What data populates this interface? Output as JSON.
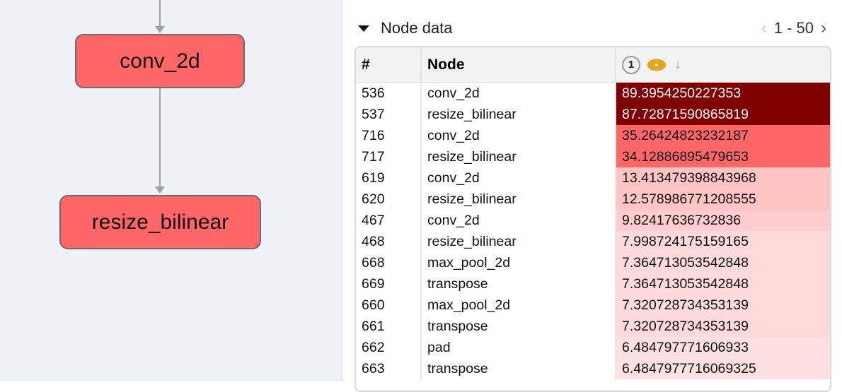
{
  "graph": {
    "nodes": [
      {
        "label": "conv_2d",
        "color": "#ff6666"
      },
      {
        "label": "resize_bilinear",
        "color": "#ff6666"
      }
    ]
  },
  "panel": {
    "section_title": "Node data",
    "pagination": "1 - 50",
    "table": {
      "columns": [
        "#",
        "Node"
      ],
      "metric_badge": "1",
      "rows": [
        {
          "id": "536",
          "node": "conv_2d",
          "value": "89.3954250227353",
          "bg": "#800000",
          "fg": "#ffffff"
        },
        {
          "id": "537",
          "node": "resize_bilinear",
          "value": "87.72871590865819",
          "bg": "#800000",
          "fg": "#ffffff"
        },
        {
          "id": "716",
          "node": "conv_2d",
          "value": "35.26424823232187",
          "bg": "#ff6666",
          "fg": "#111111"
        },
        {
          "id": "717",
          "node": "resize_bilinear",
          "value": "34.12886895479653",
          "bg": "#ff6666",
          "fg": "#111111"
        },
        {
          "id": "619",
          "node": "conv_2d",
          "value": "13.413479398843968",
          "bg": "#ffc4c4",
          "fg": "#111111"
        },
        {
          "id": "620",
          "node": "resize_bilinear",
          "value": "12.578986771208555",
          "bg": "#ffc4c4",
          "fg": "#111111"
        },
        {
          "id": "467",
          "node": "conv_2d",
          "value": "9.82417636732836",
          "bg": "#ffcdcd",
          "fg": "#111111"
        },
        {
          "id": "468",
          "node": "resize_bilinear",
          "value": "7.998724175159165",
          "bg": "#ffdada",
          "fg": "#111111"
        },
        {
          "id": "668",
          "node": "max_pool_2d",
          "value": "7.364713053542848",
          "bg": "#ffdada",
          "fg": "#111111"
        },
        {
          "id": "669",
          "node": "transpose",
          "value": "7.364713053542848",
          "bg": "#ffdada",
          "fg": "#111111"
        },
        {
          "id": "660",
          "node": "max_pool_2d",
          "value": "7.320728734353139",
          "bg": "#ffdada",
          "fg": "#111111"
        },
        {
          "id": "661",
          "node": "transpose",
          "value": "7.320728734353139",
          "bg": "#ffdada",
          "fg": "#111111"
        },
        {
          "id": "662",
          "node": "pad",
          "value": "6.484797771606933",
          "bg": "#ffe0e0",
          "fg": "#111111"
        },
        {
          "id": "663",
          "node": "transpose",
          "value": "6.4847977716069325",
          "bg": "#ffe0e0",
          "fg": "#111111"
        }
      ]
    }
  }
}
